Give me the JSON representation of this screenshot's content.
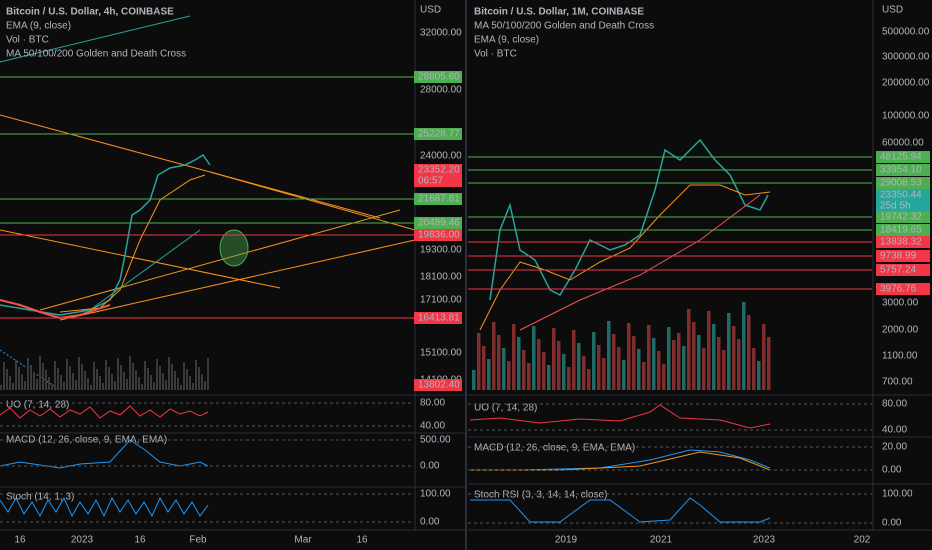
{
  "left": {
    "title": "Bitcoin / U.S. Dollar, 4h, COINBASE",
    "legend": [
      "EMA (9, close)",
      "Vol · BTC",
      "MA 50/100/200 Golden and Death Cross"
    ],
    "currency": "USD",
    "price_ticks": [
      "32000.00",
      "28000.00",
      "24000.00",
      "19300.00",
      "18100.00",
      "17100.00",
      "15100.00",
      "14100.00"
    ],
    "price_labels": [
      {
        "text": "28805.60",
        "color": "#4caf50"
      },
      {
        "text": "25228.77",
        "color": "#4caf50"
      },
      {
        "text": "23352.20",
        "color": "#f23645"
      },
      {
        "text": "06:57",
        "color": "#f23645"
      },
      {
        "text": "21687.81",
        "color": "#4caf50"
      },
      {
        "text": "20489.46",
        "color": "#4caf50"
      },
      {
        "text": "19836.00",
        "color": "#f23645"
      },
      {
        "text": "16413.81",
        "color": "#f23645"
      },
      {
        "text": "13802.40",
        "color": "#f23645"
      }
    ],
    "panes": [
      {
        "name": "UO (7, 14, 28)",
        "ticks": [
          "80.00",
          "40.00"
        ]
      },
      {
        "name": "MACD (12, 26, close, 9, EMA, EMA)",
        "ticks": [
          "500.00",
          "0.00"
        ]
      },
      {
        "name": "Stoch (14, 1, 3)",
        "ticks": [
          "100.00",
          "0.00"
        ]
      }
    ],
    "time_ticks": [
      "16",
      "2023",
      "16",
      "Feb",
      "Mar",
      "16"
    ]
  },
  "right": {
    "title": "Bitcoin / U.S. Dollar, 1M, COINBASE",
    "legend": [
      "MA 50/100/200 Golden and Death Cross",
      "EMA (9, close)",
      "Vol · BTC"
    ],
    "currency": "USD",
    "price_ticks": [
      "500000.00",
      "300000.00",
      "200000.00",
      "100000.00",
      "60000.00",
      "3000.00",
      "2000.00",
      "1100.00",
      "700.00"
    ],
    "price_labels": [
      {
        "text": "48125.94",
        "color": "#4caf50"
      },
      {
        "text": "33954.10",
        "color": "#4caf50"
      },
      {
        "text": "29008.53",
        "color": "#4caf50"
      },
      {
        "text": "23350.44",
        "color": "#26a69a"
      },
      {
        "text": "25d 5h",
        "color": "#26a69a"
      },
      {
        "text": "19742.32",
        "color": "#4caf50"
      },
      {
        "text": "18419.65",
        "color": "#4caf50"
      },
      {
        "text": "13838.32",
        "color": "#f23645"
      },
      {
        "text": "9738.99",
        "color": "#f23645"
      },
      {
        "text": "5757.24",
        "color": "#f23645"
      },
      {
        "text": "3976.76",
        "color": "#f23645"
      }
    ],
    "panes": [
      {
        "name": "UO (7, 14, 28)",
        "ticks": [
          "80.00",
          "40.00"
        ]
      },
      {
        "name": "MACD (12, 26, close, 9, EMA, EMA)",
        "ticks": [
          "20.00",
          "0.00"
        ]
      },
      {
        "name": "Stoch RSI (3, 3, 14, 14, close)",
        "ticks": [
          "100.00",
          "0.00"
        ]
      }
    ],
    "time_ticks": [
      "2019",
      "2021",
      "2023",
      "202"
    ]
  }
}
